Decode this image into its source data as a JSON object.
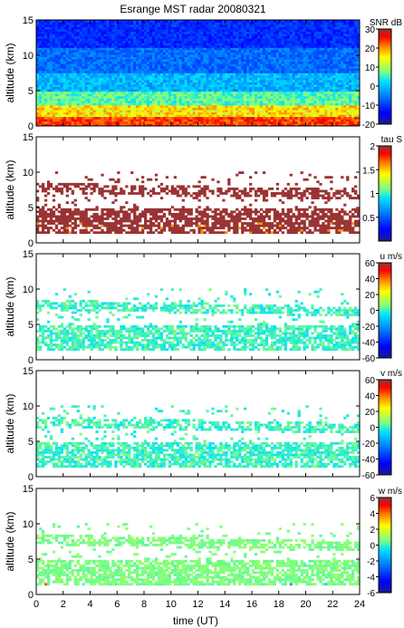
{
  "chart_data": {
    "title": "Esrange MST radar 20080321",
    "type": "heatmap",
    "x": {
      "label": "time (UT)",
      "range": [
        0,
        24
      ],
      "ticks": [
        0,
        2,
        4,
        6,
        8,
        10,
        12,
        14,
        16,
        18,
        20,
        22,
        24
      ]
    },
    "panels": [
      {
        "id": "snr",
        "ylabel": "altitude (km)",
        "yrange": [
          0,
          15
        ],
        "yticks": [
          0,
          5,
          10,
          15
        ],
        "colorbar": {
          "label": "SNR dB",
          "range": [
            -20,
            30
          ],
          "ticks": [
            -20,
            -10,
            0,
            10,
            20,
            30
          ]
        }
      },
      {
        "id": "tau",
        "ylabel": "altitude (km)",
        "yrange": [
          0,
          15
        ],
        "yticks": [
          0,
          5,
          10,
          15
        ],
        "colorbar": {
          "label": "tau S",
          "range": [
            0,
            2
          ],
          "ticks": [
            0.5,
            1,
            1.5,
            2
          ]
        }
      },
      {
        "id": "u",
        "ylabel": "altitude (km)",
        "yrange": [
          0,
          15
        ],
        "yticks": [
          0,
          5,
          10,
          15
        ],
        "colorbar": {
          "label": "u m/s",
          "range": [
            -60,
            60
          ],
          "ticks": [
            -60,
            -40,
            -20,
            0,
            20,
            40,
            60
          ]
        }
      },
      {
        "id": "v",
        "ylabel": "altitude (km)",
        "yrange": [
          0,
          15
        ],
        "yticks": [
          0,
          5,
          10,
          15
        ],
        "colorbar": {
          "label": "v m/s",
          "range": [
            -60,
            60
          ],
          "ticks": [
            -60,
            -40,
            -20,
            0,
            20,
            40,
            60
          ]
        }
      },
      {
        "id": "w",
        "ylabel": "altitude (km)",
        "yrange": [
          0,
          15
        ],
        "yticks": [
          0,
          5,
          10,
          15
        ],
        "colorbar": {
          "label": "w m/s",
          "range": [
            -6,
            6
          ],
          "ticks": [
            -6,
            -4,
            -2,
            0,
            2,
            4,
            6
          ]
        }
      }
    ],
    "colormap": [
      "#1c1c8c",
      "#0000ff",
      "#0080ff",
      "#00e0ff",
      "#80ff80",
      "#ffff00",
      "#ff8000",
      "#ff0000",
      "#8b3a3a"
    ]
  }
}
